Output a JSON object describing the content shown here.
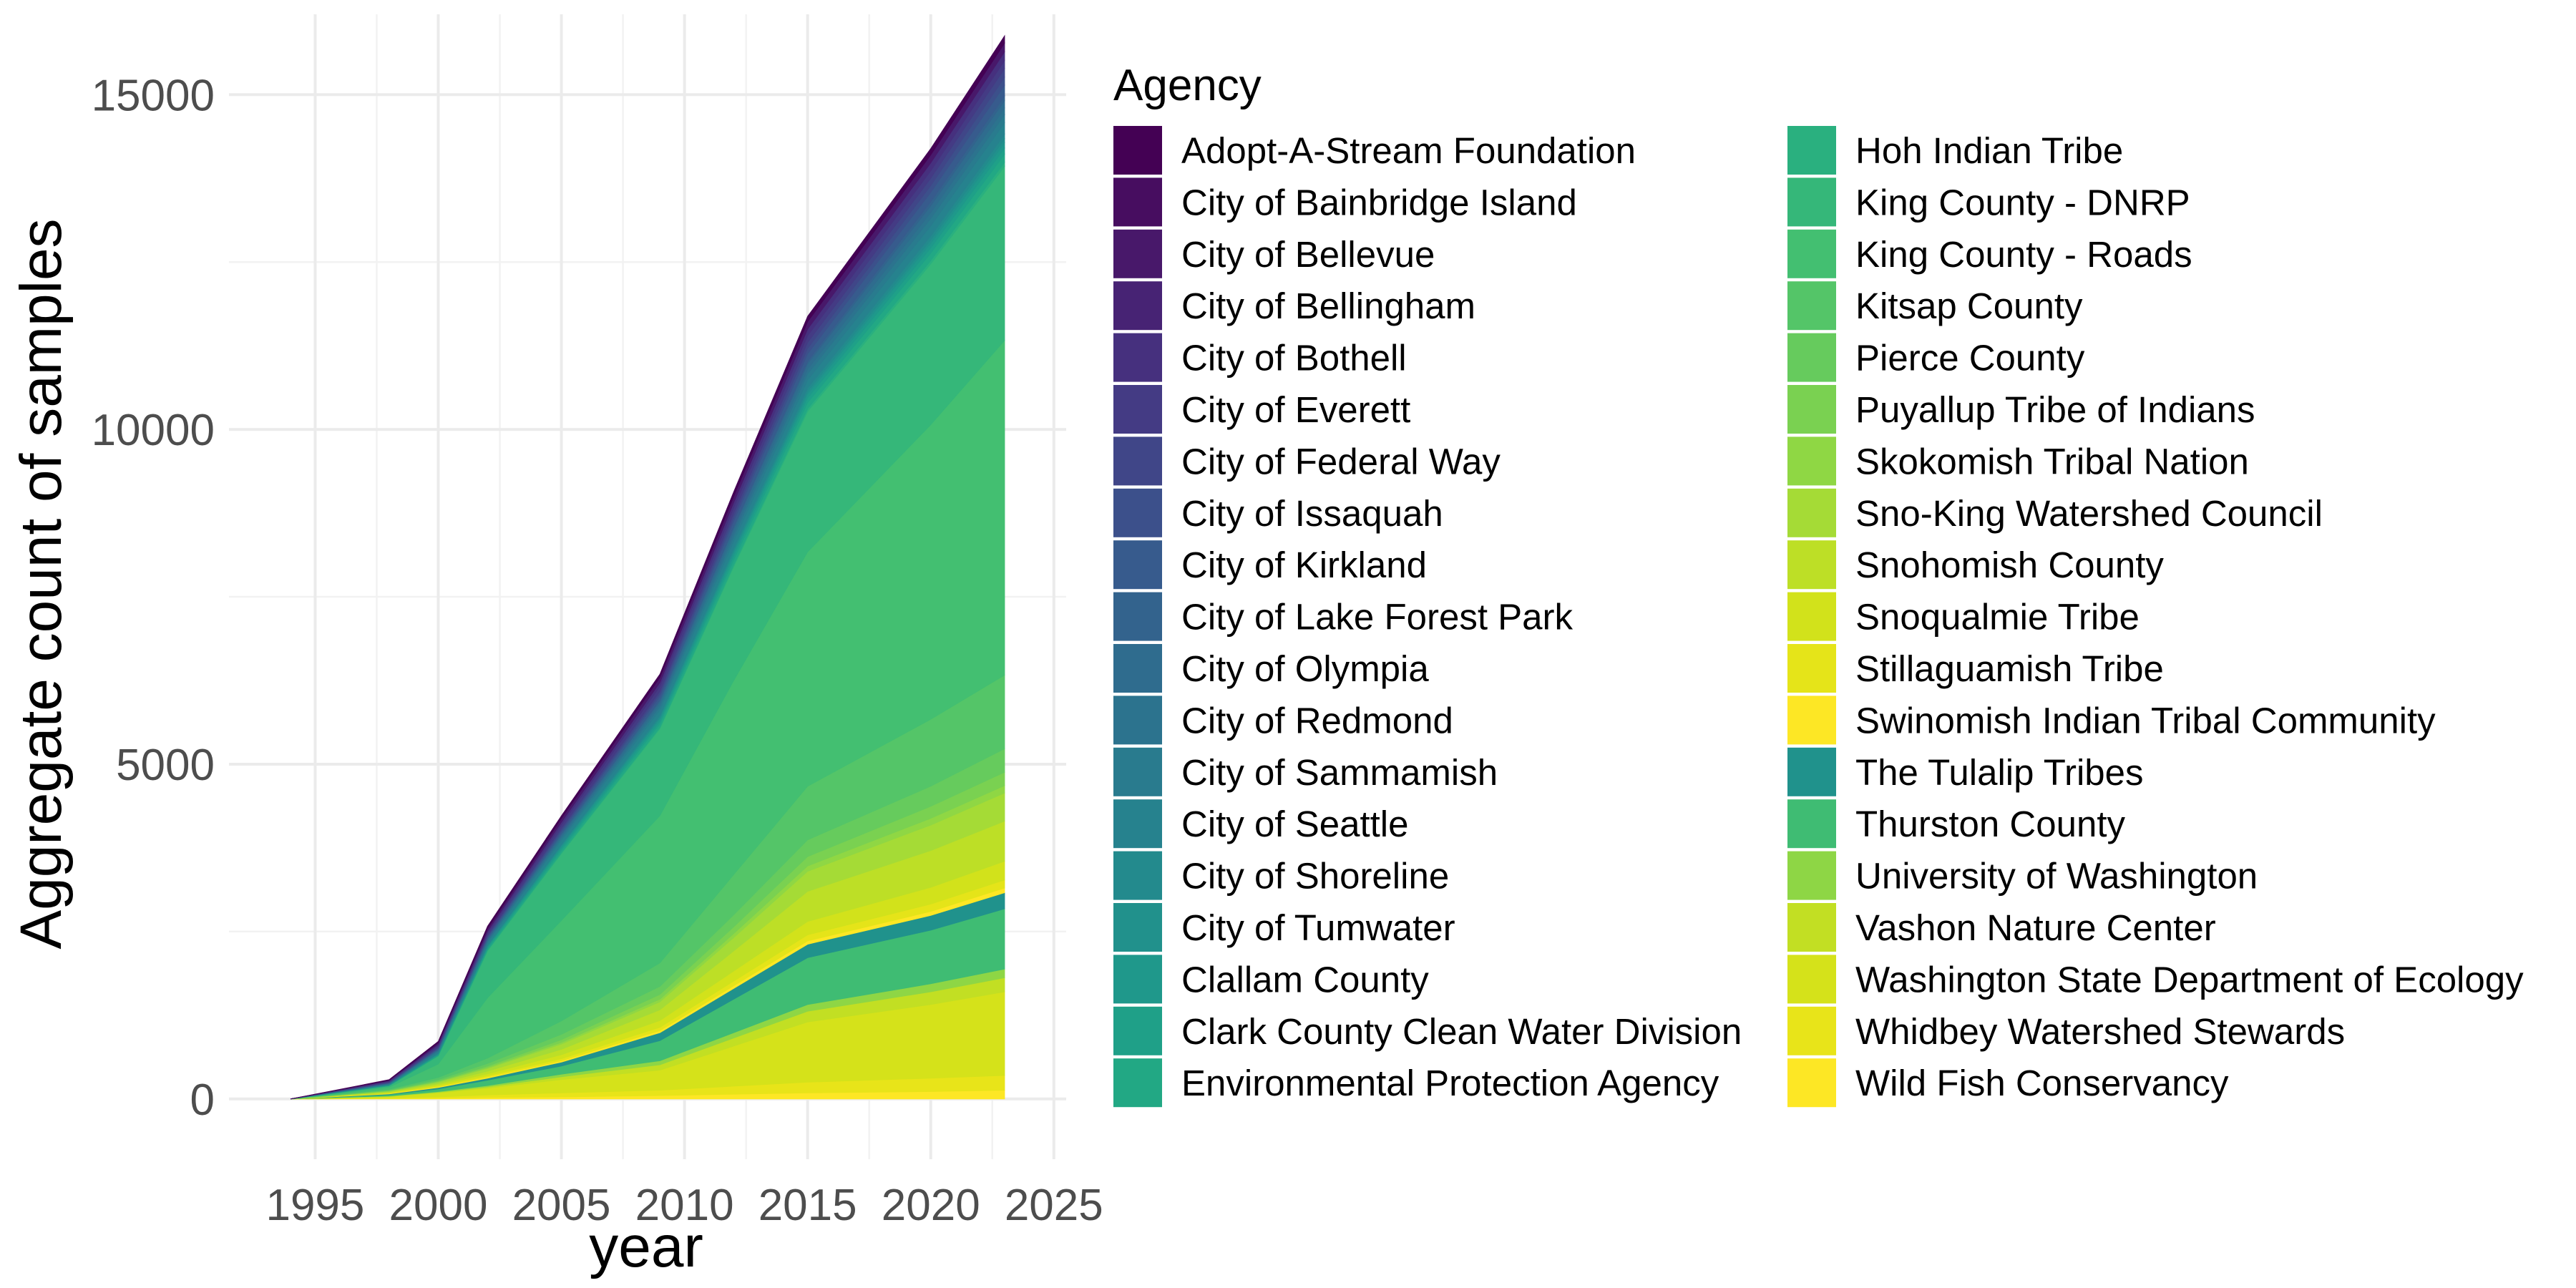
{
  "chart_data": {
    "type": "area",
    "stacked": true,
    "xlabel": "year",
    "ylabel": "Aggregate count of samples",
    "legend_title": "Agency",
    "legend_position": "right",
    "grid": true,
    "xlim": [
      1991.5,
      2025.5
    ],
    "ylim": [
      -900,
      16200
    ],
    "x_ticks": [
      1995,
      2000,
      2005,
      2010,
      2015,
      2020,
      2025
    ],
    "y_ticks": [
      0,
      5000,
      10000,
      15000
    ],
    "x": [
      1994,
      1998,
      2000,
      2002,
      2005,
      2009,
      2012,
      2015,
      2020,
      2023
    ],
    "series": [
      {
        "name": "Adopt-A-Stream Foundation",
        "color": "#440154",
        "values": [
          0,
          8,
          20,
          35,
          40,
          50,
          70,
          80,
          95,
          110
        ]
      },
      {
        "name": "City of Bainbridge Island",
        "color": "#470d60",
        "values": [
          0,
          0,
          0,
          0,
          0,
          0,
          0,
          0,
          0,
          0
        ]
      },
      {
        "name": "City of Bellevue",
        "color": "#48186a",
        "values": [
          0,
          10,
          25,
          40,
          55,
          75,
          90,
          110,
          120,
          130
        ]
      },
      {
        "name": "City of Bellingham",
        "color": "#472374",
        "values": [
          0,
          0,
          0,
          0,
          0,
          0,
          0,
          0,
          0,
          0
        ]
      },
      {
        "name": "City of Bothell",
        "color": "#46307e",
        "values": [
          0,
          10,
          20,
          30,
          40,
          60,
          80,
          100,
          120,
          130
        ]
      },
      {
        "name": "City of Everett",
        "color": "#443b84",
        "values": [
          0,
          10,
          20,
          30,
          50,
          70,
          80,
          100,
          110,
          120
        ]
      },
      {
        "name": "City of Federal Way",
        "color": "#404688",
        "values": [
          0,
          5,
          10,
          15,
          25,
          40,
          60,
          90,
          110,
          130
        ]
      },
      {
        "name": "City of Issaquah",
        "color": "#3c508b",
        "values": [
          0,
          5,
          10,
          15,
          25,
          40,
          60,
          80,
          100,
          120
        ]
      },
      {
        "name": "City of Kirkland",
        "color": "#375b8d",
        "values": [
          0,
          5,
          10,
          20,
          30,
          50,
          80,
          110,
          140,
          160
        ]
      },
      {
        "name": "City of Lake Forest Park",
        "color": "#33638d",
        "values": [
          0,
          0,
          5,
          10,
          15,
          20,
          30,
          40,
          60,
          70
        ]
      },
      {
        "name": "City of Olympia",
        "color": "#2f6c8e",
        "values": [
          0,
          5,
          10,
          15,
          25,
          40,
          60,
          80,
          100,
          110
        ]
      },
      {
        "name": "City of Redmond",
        "color": "#2c738e",
        "values": [
          0,
          5,
          10,
          20,
          30,
          40,
          60,
          70,
          90,
          100
        ]
      },
      {
        "name": "City of Sammamish",
        "color": "#297b8e",
        "values": [
          0,
          5,
          10,
          15,
          30,
          50,
          70,
          90,
          110,
          120
        ]
      },
      {
        "name": "City of Seattle",
        "color": "#26828e",
        "values": [
          0,
          10,
          25,
          40,
          60,
          80,
          100,
          120,
          150,
          170
        ]
      },
      {
        "name": "City of Shoreline",
        "color": "#238a8d",
        "values": [
          0,
          0,
          5,
          10,
          20,
          30,
          40,
          50,
          60,
          70
        ]
      },
      {
        "name": "City of Tumwater",
        "color": "#21918c",
        "values": [
          0,
          0,
          5,
          5,
          10,
          20,
          30,
          40,
          50,
          60
        ]
      },
      {
        "name": "Clallam County",
        "color": "#1f988b",
        "values": [
          0,
          5,
          10,
          20,
          30,
          40,
          50,
          60,
          70,
          80
        ]
      },
      {
        "name": "Clark County Clean Water Division",
        "color": "#1fa088",
        "values": [
          0,
          5,
          10,
          20,
          30,
          40,
          60,
          70,
          80,
          90
        ]
      },
      {
        "name": "Environmental Protection Agency",
        "color": "#22a884",
        "values": [
          0,
          5,
          10,
          20,
          35,
          50,
          70,
          90,
          110,
          120
        ]
      },
      {
        "name": "Hoh Indian Tribe",
        "color": "#2ab07f",
        "values": [
          0,
          0,
          5,
          10,
          15,
          20,
          30,
          40,
          50,
          60
        ]
      },
      {
        "name": "King County - DNRP",
        "color": "#35b779",
        "values": [
          0,
          20,
          120,
          700,
          1000,
          1300,
          1700,
          2100,
          2400,
          2600
        ]
      },
      {
        "name": "King County - Roads",
        "color": "#43bf71",
        "values": [
          0,
          30,
          200,
          900,
          1500,
          2200,
          2900,
          3500,
          4400,
          5000
        ]
      },
      {
        "name": "Kitsap County",
        "color": "#54c568",
        "values": [
          0,
          10,
          30,
          80,
          200,
          350,
          600,
          800,
          1000,
          1100
        ]
      },
      {
        "name": "Pierce County",
        "color": "#66cb5d",
        "values": [
          0,
          10,
          20,
          40,
          80,
          120,
          180,
          250,
          300,
          350
        ]
      },
      {
        "name": "Puyallup Tribe of Indians",
        "color": "#7ad151",
        "values": [
          0,
          5,
          10,
          20,
          40,
          70,
          100,
          140,
          180,
          200
        ]
      },
      {
        "name": "Skokomish Tribal Nation",
        "color": "#8fd744",
        "values": [
          0,
          5,
          10,
          15,
          25,
          40,
          60,
          80,
          100,
          110
        ]
      },
      {
        "name": "Sno-King Watershed Council",
        "color": "#a5db36",
        "values": [
          0,
          10,
          20,
          40,
          80,
          120,
          200,
          300,
          380,
          420
        ]
      },
      {
        "name": "Snohomish County",
        "color": "#bddf26",
        "values": [
          0,
          10,
          20,
          40,
          80,
          160,
          300,
          450,
          550,
          600
        ]
      },
      {
        "name": "Snoqualmie Tribe",
        "color": "#d2e21b",
        "values": [
          0,
          10,
          20,
          30,
          60,
          100,
          150,
          200,
          250,
          280
        ]
      },
      {
        "name": "Stillaguamish Tribe",
        "color": "#e5e419",
        "values": [
          0,
          5,
          10,
          20,
          30,
          50,
          70,
          90,
          110,
          120
        ]
      },
      {
        "name": "Swinomish Indian Tribal Community",
        "color": "#fde725",
        "values": [
          0,
          5,
          10,
          15,
          20,
          30,
          40,
          50,
          60,
          70
        ]
      },
      {
        "name": "The Tulalip Tribes",
        "color": "#20928c",
        "values": [
          0,
          10,
          20,
          30,
          60,
          120,
          160,
          200,
          220,
          240
        ]
      },
      {
        "name": "Thurston County",
        "color": "#3fbc73",
        "values": [
          0,
          20,
          40,
          80,
          120,
          300,
          500,
          700,
          800,
          900
        ]
      },
      {
        "name": "University of Washington",
        "color": "#8ed645",
        "values": [
          0,
          5,
          10,
          20,
          40,
          60,
          80,
          100,
          120,
          130
        ]
      },
      {
        "name": "Vashon Nature Center",
        "color": "#c2df23",
        "values": [
          0,
          5,
          10,
          20,
          40,
          80,
          120,
          160,
          190,
          210
        ]
      },
      {
        "name": "Washington State Department of Ecology",
        "color": "#d5e21a",
        "values": [
          0,
          20,
          60,
          100,
          200,
          300,
          600,
          900,
          1100,
          1250
        ]
      },
      {
        "name": "Whidbey Watershed Stewards",
        "color": "#e8e419",
        "values": [
          0,
          10,
          20,
          40,
          60,
          80,
          120,
          160,
          200,
          220
        ]
      },
      {
        "name": "Wild Fish Conservancy",
        "color": "#fde725",
        "values": [
          0,
          5,
          10,
          20,
          30,
          50,
          70,
          90,
          110,
          130
        ]
      }
    ]
  }
}
